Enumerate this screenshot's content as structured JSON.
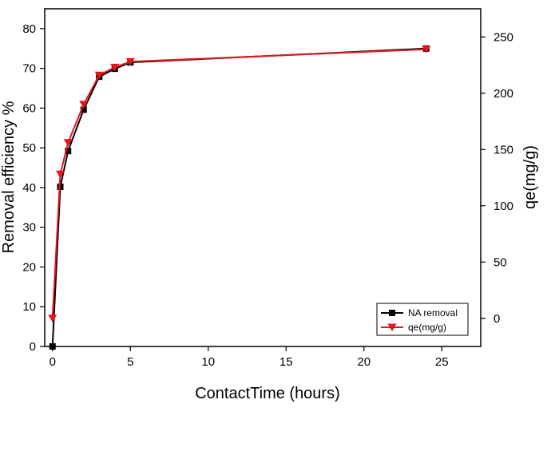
{
  "chart_data": {
    "type": "line",
    "xlabel": "ContactTime (hours)",
    "ylabel": "Removal efficiency %",
    "y2label": "qe(mg/g)",
    "xlim": [
      -0.5,
      27.5
    ],
    "ylim": [
      0,
      85
    ],
    "y2lim": [
      -25,
      275
    ],
    "xticks": [
      0,
      5,
      10,
      15,
      20,
      25
    ],
    "yticks": [
      0,
      10,
      20,
      30,
      40,
      50,
      60,
      70,
      80
    ],
    "y2ticks": [
      0,
      50,
      100,
      150,
      200,
      250
    ],
    "grid": false,
    "legend_position": "bottom-right",
    "series": [
      {
        "name": "NA removal",
        "axis": "left",
        "color": "#000000",
        "marker": "square",
        "x": [
          0,
          0.5,
          1,
          2,
          3,
          4,
          5,
          24
        ],
        "y": [
          0,
          40.2,
          49.2,
          59.6,
          67.9,
          69.9,
          71.5,
          75.0
        ]
      },
      {
        "name": "qe(mg/g)",
        "axis": "right",
        "color": "#e8141c",
        "marker": "triangle-down",
        "x": [
          0,
          0.5,
          1,
          2,
          3,
          4,
          5,
          24
        ],
        "y": [
          0,
          128,
          156,
          190,
          216,
          223,
          228,
          239
        ]
      }
    ]
  }
}
